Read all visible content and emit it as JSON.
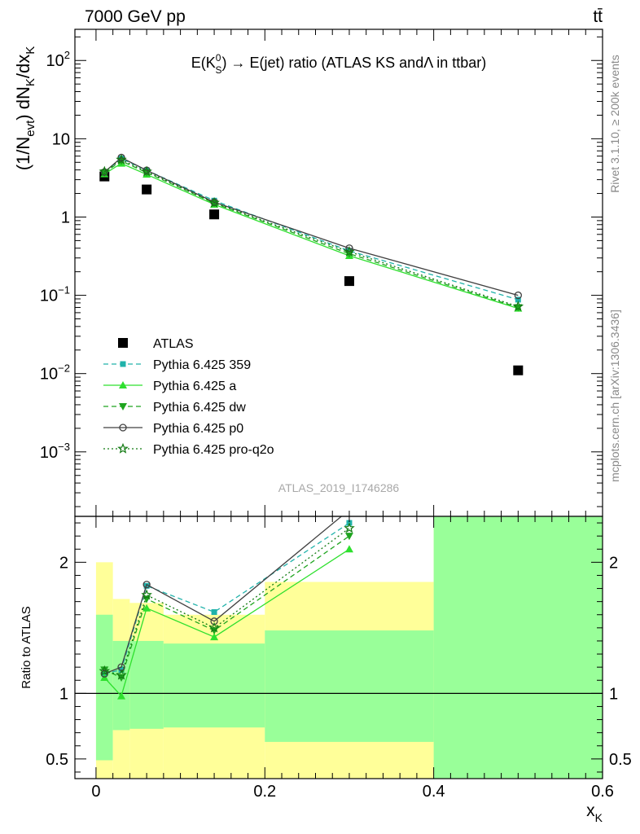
{
  "header": {
    "left": "7000 GeV pp",
    "right": "tt̄"
  },
  "side_text": {
    "rivet": "Rivet 3.1.10, ≥ 200k events",
    "mcplots": "mcplots.cern.ch [arXiv:1306.3436]"
  },
  "watermark": "ATLAS_2019_I1746286",
  "chart_data": [
    {
      "type": "scatter",
      "panel": "main",
      "title": "E(K⁰S) → E(jet) ratio (ATLAS KS andΛ in ttbar)",
      "title_parts": {
        "pre": "E(K",
        "sup": "0",
        "sub": "S",
        "post": ") → E(jet) ratio (ATLAS KS andΛ in ttbar)"
      },
      "ylabel": "(1/N_evt) dN_K/dx_K",
      "ylabel_parts": {
        "a": "(1/N",
        "s1": "evt",
        "b": ") dN",
        "s2": "K",
        "c": "/dx",
        "s3": "K"
      },
      "yscale": "log",
      "ylim": [
        0.00015,
        250
      ],
      "xlim": [
        -0.025,
        0.6
      ],
      "y_ticks": [
        {
          "v": 100,
          "base": "10",
          "exp": "2"
        },
        {
          "v": 10,
          "base": "10",
          "exp": ""
        },
        {
          "v": 1,
          "base": "1",
          "exp": ""
        },
        {
          "v": 0.1,
          "base": "10",
          "exp": "−1"
        },
        {
          "v": 0.01,
          "base": "10",
          "exp": "−2"
        },
        {
          "v": 0.001,
          "base": "10",
          "exp": "−3"
        }
      ],
      "legend_position": "lower-left",
      "series": [
        {
          "name": "ATLAS",
          "kind": "data",
          "color": "#000000",
          "marker": "square",
          "x": [
            0.01,
            0.06,
            0.14,
            0.3,
            0.5
          ],
          "y": [
            3.3,
            2.25,
            1.08,
            0.152,
            0.011
          ]
        },
        {
          "name": "Pythia 6.425 359",
          "color": "#20b2aa",
          "dash": "6,4",
          "marker": "square-small",
          "x": [
            0.01,
            0.03,
            0.06,
            0.14,
            0.3,
            0.5
          ],
          "y": [
            3.75,
            5.6,
            3.95,
            1.62,
            0.37,
            0.088
          ]
        },
        {
          "name": "Pythia 6.425 a",
          "color": "#2ee02e",
          "dash": "",
          "marker": "triangle-up",
          "x": [
            0.01,
            0.03,
            0.06,
            0.14,
            0.3,
            0.5
          ],
          "y": [
            3.55,
            4.85,
            3.5,
            1.45,
            0.32,
            0.068
          ]
        },
        {
          "name": "Pythia 6.425 dw",
          "color": "#1fa51f",
          "dash": "6,4",
          "marker": "triangle-down",
          "x": [
            0.01,
            0.03,
            0.06,
            0.14,
            0.3,
            0.5
          ],
          "y": [
            3.7,
            5.2,
            3.7,
            1.5,
            0.34,
            0.07
          ]
        },
        {
          "name": "Pythia 6.425 p0",
          "color": "#404040",
          "dash": "",
          "marker": "circle-open",
          "x": [
            0.01,
            0.03,
            0.06,
            0.14,
            0.3,
            0.5
          ],
          "y": [
            3.75,
            5.75,
            3.95,
            1.55,
            0.4,
            0.1
          ]
        },
        {
          "name": "Pythia 6.425 pro-q2o",
          "color": "#127a12",
          "dash": "2,3",
          "marker": "star-open",
          "x": [
            0.01,
            0.03,
            0.06,
            0.14,
            0.3,
            0.5
          ],
          "y": [
            3.8,
            5.4,
            3.8,
            1.52,
            0.36,
            0.072
          ]
        }
      ]
    },
    {
      "type": "scatter",
      "panel": "ratio",
      "ylabel": "Ratio to ATLAS",
      "xlabel": "x_K",
      "xlabel_parts": {
        "main": "x",
        "sub": "K"
      },
      "ylim": [
        0.35,
        2.35
      ],
      "xlim": [
        -0.025,
        0.6
      ],
      "y_ticks": [
        0.5,
        1,
        2
      ],
      "x_ticks": [
        "0",
        "0.2",
        "0.4",
        "0.6"
      ],
      "x_tick_values": [
        0,
        0.2,
        0.4,
        0.6
      ],
      "reference_line": 1,
      "band_colors": {
        "total": "#ffff99",
        "stat": "#99ff99"
      },
      "bands": [
        {
          "x0": 0.0,
          "x1": 0.02,
          "total": [
            0.35,
            2.0
          ],
          "stat": [
            0.49,
            1.6
          ]
        },
        {
          "x0": 0.02,
          "x1": 0.04,
          "total": [
            0.35,
            1.72
          ],
          "stat": [
            0.72,
            1.4
          ]
        },
        {
          "x0": 0.04,
          "x1": 0.08,
          "total": [
            0.35,
            1.69
          ],
          "stat": [
            0.73,
            1.4
          ]
        },
        {
          "x0": 0.08,
          "x1": 0.2,
          "total": [
            0.35,
            1.6
          ],
          "stat": [
            0.74,
            1.38
          ]
        },
        {
          "x0": 0.2,
          "x1": 0.4,
          "total": [
            0.35,
            1.85
          ],
          "stat": [
            0.63,
            1.48
          ]
        },
        {
          "x0": 0.4,
          "x1": 0.6,
          "total": [
            0.35,
            2.35
          ],
          "stat": [
            0.35,
            2.35
          ]
        }
      ],
      "series": [
        {
          "name": "Pythia 6.425 359",
          "color": "#20b2aa",
          "dash": "6,4",
          "marker": "square-small",
          "x": [
            0.01,
            0.03,
            0.06,
            0.14,
            0.3
          ],
          "y": [
            1.15,
            1.18,
            1.82,
            1.62,
            2.3
          ]
        },
        {
          "name": "Pythia 6.425 a",
          "color": "#2ee02e",
          "dash": "",
          "marker": "triangle-up",
          "x": [
            0.01,
            0.03,
            0.06,
            0.14,
            0.3
          ],
          "y": [
            1.12,
            0.98,
            1.65,
            1.43,
            2.1
          ]
        },
        {
          "name": "Pythia 6.425 dw",
          "color": "#1fa51f",
          "dash": "6,4",
          "marker": "triangle-down",
          "x": [
            0.01,
            0.03,
            0.06,
            0.14,
            0.3
          ],
          "y": [
            1.18,
            1.12,
            1.72,
            1.48,
            2.2
          ]
        },
        {
          "name": "Pythia 6.425 p0",
          "color": "#404040",
          "dash": "",
          "marker": "circle-open",
          "x": [
            0.01,
            0.03,
            0.06,
            0.14,
            0.3
          ],
          "y": [
            1.15,
            1.2,
            1.83,
            1.55,
            2.4
          ]
        },
        {
          "name": "Pythia 6.425 pro-q2o",
          "color": "#127a12",
          "dash": "2,3",
          "marker": "star-open",
          "x": [
            0.01,
            0.03,
            0.06,
            0.14,
            0.3
          ],
          "y": [
            1.17,
            1.14,
            1.75,
            1.5,
            2.26
          ]
        }
      ]
    }
  ]
}
